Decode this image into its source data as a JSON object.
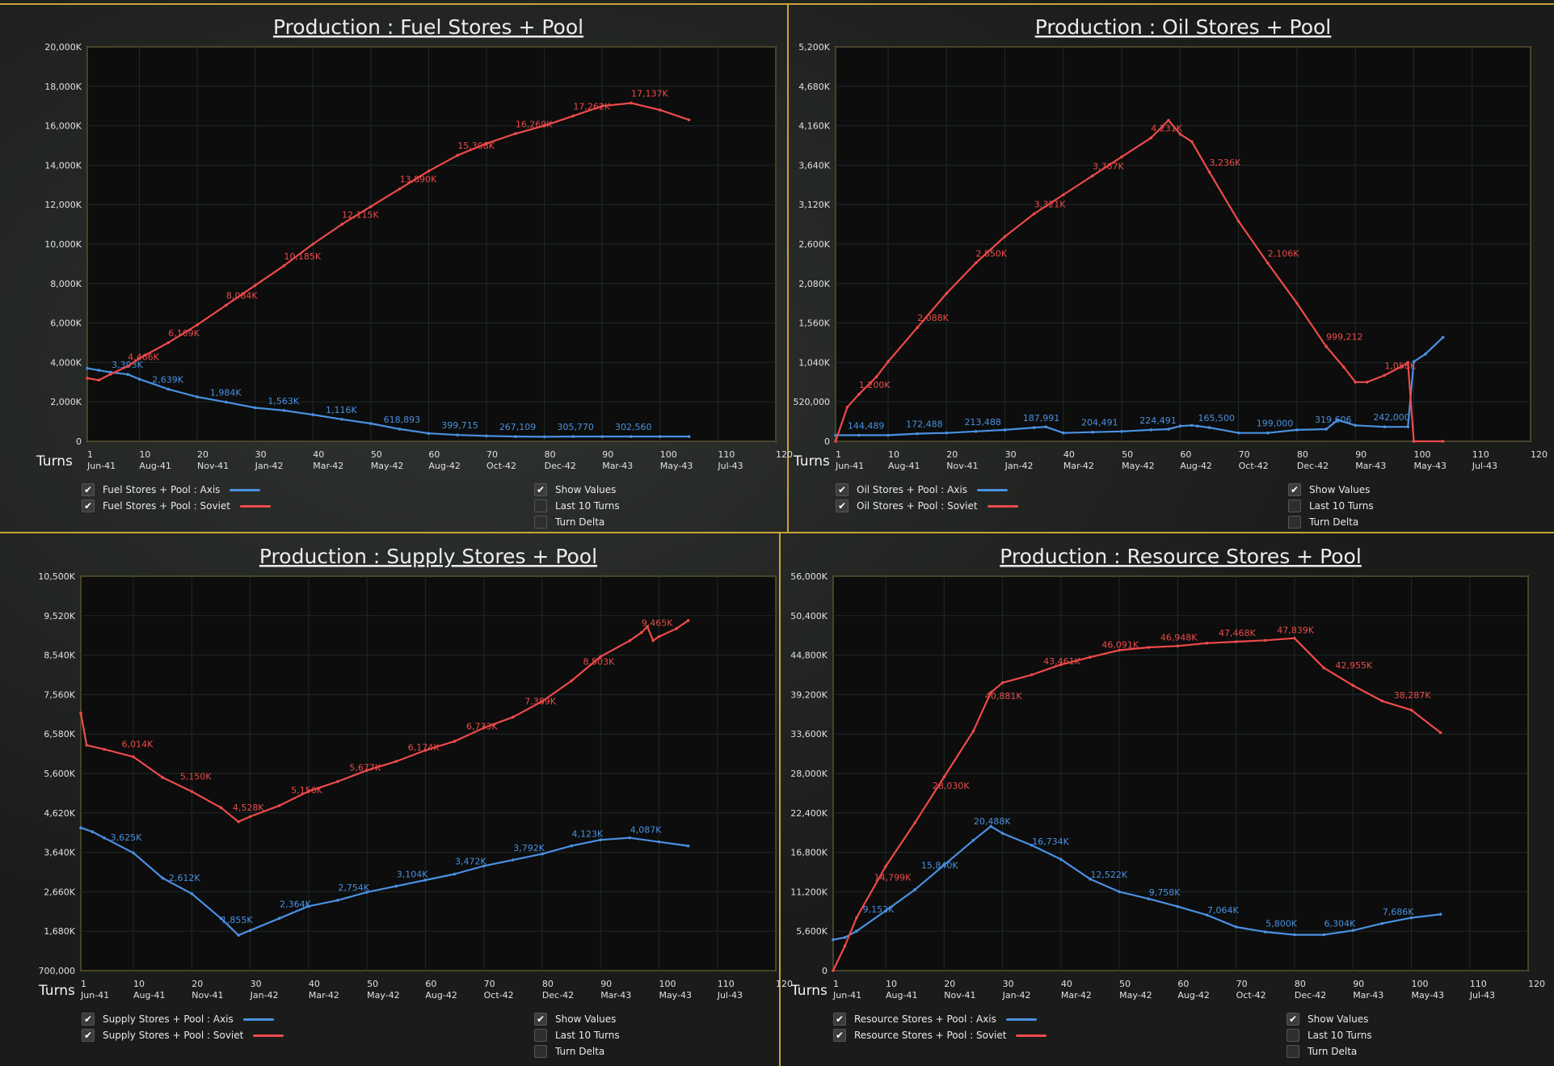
{
  "turns_label": "Turns",
  "colors": {
    "axis": "#4a90e2",
    "soviet": "#ee4a4a",
    "frame": "#c9a23a"
  },
  "options": [
    {
      "label": "Show Values",
      "checked": true
    },
    {
      "label": "Last 10 Turns",
      "checked": false
    },
    {
      "label": "Turn Delta",
      "checked": false
    }
  ],
  "x_ticks": [
    {
      "turn": 1,
      "date": "Jun-41"
    },
    {
      "turn": 10,
      "date": "Aug-41"
    },
    {
      "turn": 20,
      "date": "Nov-41"
    },
    {
      "turn": 30,
      "date": "Jan-42"
    },
    {
      "turn": 40,
      "date": "Mar-42"
    },
    {
      "turn": 50,
      "date": "May-42"
    },
    {
      "turn": 60,
      "date": "Aug-42"
    },
    {
      "turn": 70,
      "date": "Oct-42"
    },
    {
      "turn": 80,
      "date": "Dec-42"
    },
    {
      "turn": 90,
      "date": "Mar-43"
    },
    {
      "turn": 100,
      "date": "May-43"
    },
    {
      "turn": 110,
      "date": "Jul-43"
    },
    {
      "turn": 120,
      "date": ""
    }
  ],
  "chart_data": [
    {
      "type": "line",
      "title": "Production : Fuel Stores + Pool",
      "xlabel": "Turns",
      "xlim": [
        1,
        120
      ],
      "ylim": [
        0,
        20000
      ],
      "y_ticks": [
        "0",
        "2,000K",
        "4,000K",
        "6,000K",
        "8,000K",
        "10,000K",
        "12,000K",
        "14,000K",
        "16,000K",
        "18,000K",
        "20,000K"
      ],
      "series": [
        {
          "name": "Fuel Stores + Pool : Axis",
          "color": "axis",
          "x": [
            1,
            3,
            5,
            8,
            10,
            15,
            20,
            25,
            30,
            35,
            40,
            45,
            50,
            55,
            60,
            65,
            70,
            75,
            80,
            85,
            90,
            95,
            100,
            105
          ],
          "y": [
            3700,
            3600,
            3500,
            3393,
            3150,
            2639,
            2250,
            1984,
            1700,
            1563,
            1350,
            1116,
            900,
            619,
            400,
            320,
            270,
            240,
            230,
            240,
            240,
            240,
            240,
            240
          ],
          "labels": [
            [
              8,
              "3,393K"
            ],
            [
              15,
              "2,639K"
            ],
            [
              25,
              "1,984K"
            ],
            [
              35,
              "1,563K"
            ],
            [
              45,
              "1,116K"
            ],
            [
              55,
              "618,893"
            ],
            [
              65,
              "399,715"
            ],
            [
              75,
              "267,109"
            ],
            [
              85,
              "305,770"
            ],
            [
              95,
              "302,560"
            ]
          ]
        },
        {
          "name": "Fuel Stores + Pool : Soviet",
          "color": "soviet",
          "x": [
            1,
            3,
            5,
            8,
            10,
            15,
            20,
            25,
            30,
            35,
            40,
            45,
            50,
            55,
            60,
            65,
            70,
            75,
            80,
            85,
            90,
            95,
            100,
            105
          ],
          "y": [
            3200,
            3100,
            3400,
            3800,
            4200,
            5000,
            5900,
            6900,
            7900,
            8900,
            10000,
            11000,
            11900,
            12800,
            13700,
            14500,
            15100,
            15600,
            16000,
            16500,
            17000,
            17150,
            16800,
            16300
          ],
          "labels": [
            [
              8,
              "4,466K"
            ],
            [
              15,
              "6,109K"
            ],
            [
              25,
              "8,084K"
            ],
            [
              35,
              "10,185K"
            ],
            [
              45,
              "12,115K"
            ],
            [
              55,
              "13,890K"
            ],
            [
              65,
              "15,308K"
            ],
            [
              75,
              "16,269K"
            ],
            [
              85,
              "17,262K"
            ],
            [
              95,
              "17,137K"
            ]
          ]
        }
      ]
    },
    {
      "type": "line",
      "title": "Production : Oil Stores + Pool",
      "xlabel": "Turns",
      "xlim": [
        1,
        120
      ],
      "ylim": [
        0,
        5200
      ],
      "y_ticks": [
        "0",
        "520,000",
        "1,040K",
        "1,560K",
        "2,080K",
        "2,600K",
        "3,120K",
        "3,640K",
        "4,160K",
        "4,680K",
        "5,200K"
      ],
      "series": [
        {
          "name": "Oil Stores + Pool : Axis",
          "color": "axis",
          "x": [
            1,
            5,
            10,
            15,
            20,
            25,
            30,
            35,
            37,
            40,
            45,
            50,
            55,
            58,
            60,
            62,
            63,
            65,
            70,
            75,
            80,
            85,
            87,
            90,
            95,
            99,
            100,
            102,
            105
          ],
          "y": [
            80,
            80,
            80,
            100,
            110,
            130,
            150,
            180,
            190,
            110,
            120,
            130,
            150,
            160,
            200,
            210,
            200,
            180,
            110,
            110,
            150,
            160,
            280,
            210,
            190,
            190,
            1050,
            1150,
            1370
          ],
          "labels": [
            [
              5,
              "144,489"
            ],
            [
              15,
              "172,488"
            ],
            [
              25,
              "213,488"
            ],
            [
              35,
              "187,991"
            ],
            [
              45,
              "204,491"
            ],
            [
              55,
              "224,491"
            ],
            [
              65,
              "165,500"
            ],
            [
              75,
              "199,000"
            ],
            [
              85,
              "319,606"
            ],
            [
              95,
              "242,000"
            ]
          ]
        },
        {
          "name": "Oil Stores + Pool : Soviet",
          "color": "soviet",
          "x": [
            1,
            3,
            5,
            8,
            10,
            15,
            20,
            25,
            30,
            35,
            40,
            45,
            50,
            55,
            58,
            60,
            62,
            65,
            70,
            75,
            80,
            85,
            88,
            90,
            92,
            95,
            98,
            99,
            100,
            105
          ],
          "y": [
            0,
            450,
            620,
            850,
            1050,
            1500,
            1950,
            2350,
            2700,
            3000,
            3250,
            3500,
            3750,
            4000,
            4231,
            4050,
            3950,
            3550,
            2900,
            2350,
            1820,
            1250,
            980,
            780,
            780,
            870,
            990,
            1040,
            0,
            0
          ],
          "labels": [
            [
              5,
              "1,200K"
            ],
            [
              15,
              "2,088K"
            ],
            [
              25,
              "2,850K"
            ],
            [
              35,
              "3,321K"
            ],
            [
              45,
              "3,767K"
            ],
            [
              55,
              "4,231K"
            ],
            [
              65,
              "3,236K"
            ],
            [
              75,
              "2,106K"
            ],
            [
              85,
              "999,212"
            ],
            [
              95,
              "1,058K"
            ]
          ]
        }
      ]
    },
    {
      "type": "line",
      "title": "Production : Supply Stores + Pool",
      "xlabel": "Turns",
      "xlim": [
        1,
        120
      ],
      "ylim": [
        700,
        10500
      ],
      "y_ticks": [
        "700,000",
        "1,680K",
        "2,660K",
        "3,640K",
        "4,620K",
        "5,600K",
        "6,580K",
        "7,560K",
        "8,540K",
        "9,520K",
        "10,500K"
      ],
      "series": [
        {
          "name": "Supply Stores + Pool : Axis",
          "color": "axis",
          "x": [
            1,
            3,
            5,
            10,
            15,
            20,
            25,
            28,
            30,
            35,
            40,
            45,
            50,
            55,
            60,
            65,
            70,
            75,
            80,
            85,
            90,
            95,
            100,
            105
          ],
          "y": [
            4250,
            4150,
            4000,
            3625,
            3000,
            2612,
            2000,
            1580,
            1700,
            2000,
            2300,
            2450,
            2650,
            2800,
            2950,
            3100,
            3300,
            3450,
            3600,
            3800,
            3950,
            4000,
            3900,
            3800
          ],
          "labels": [
            [
              8,
              "3,625K"
            ],
            [
              18,
              "2,612K"
            ],
            [
              27,
              "1,855K"
            ],
            [
              37,
              "2,364K"
            ],
            [
              47,
              "2,754K"
            ],
            [
              57,
              "3,104K"
            ],
            [
              67,
              "3,472K"
            ],
            [
              77,
              "3,792K"
            ],
            [
              87,
              "4,123K"
            ],
            [
              97,
              "4,087K"
            ]
          ]
        },
        {
          "name": "Supply Stores + Pool : Soviet",
          "color": "soviet",
          "x": [
            1,
            2,
            5,
            10,
            15,
            20,
            25,
            28,
            30,
            35,
            40,
            45,
            50,
            55,
            60,
            65,
            70,
            75,
            80,
            85,
            90,
            95,
            97,
            98,
            99,
            100,
            103,
            105
          ],
          "y": [
            7100,
            6300,
            6200,
            6014,
            5500,
            5150,
            4750,
            4400,
            4528,
            4800,
            5156,
            5400,
            5677,
            5900,
            6174,
            6400,
            6733,
            7000,
            7389,
            7900,
            8503,
            8900,
            9100,
            9250,
            8900,
            9000,
            9200,
            9400
          ],
          "labels": [
            [
              8,
              "6,014K"
            ],
            [
              18,
              "5,150K"
            ],
            [
              27,
              "4,528K"
            ],
            [
              37,
              "5,156K"
            ],
            [
              47,
              "5,677K"
            ],
            [
              57,
              "6,174K"
            ],
            [
              67,
              "6,733K"
            ],
            [
              77,
              "7,389K"
            ],
            [
              87,
              "8,503K"
            ],
            [
              97,
              "9,465K"
            ]
          ]
        }
      ]
    },
    {
      "type": "line",
      "title": "Production : Resource Stores + Pool",
      "xlabel": "Turns",
      "xlim": [
        1,
        120
      ],
      "ylim": [
        0,
        56000
      ],
      "y_ticks": [
        "0",
        "5,600K",
        "11,200K",
        "16,800K",
        "22,400K",
        "28,000K",
        "33,600K",
        "39,200K",
        "44,800K",
        "50,400K",
        "56,000K"
      ],
      "series": [
        {
          "name": "Resource Stores + Pool : Axis",
          "color": "axis",
          "x": [
            1,
            3,
            5,
            10,
            15,
            20,
            25,
            28,
            30,
            35,
            40,
            45,
            50,
            55,
            60,
            65,
            70,
            75,
            80,
            85,
            90,
            95,
            100,
            105
          ],
          "y": [
            4400,
            4700,
            5600,
            8500,
            11500,
            15000,
            18500,
            20488,
            19500,
            17800,
            15800,
            13000,
            11200,
            10200,
            9100,
            7900,
            6200,
            5500,
            5100,
            5100,
            5700,
            6700,
            7500,
            8000
          ],
          "labels": [
            [
              8,
              "9,152K"
            ],
            [
              18,
              "15,840K"
            ],
            [
              27,
              "20,488K"
            ],
            [
              37,
              "16,734K"
            ],
            [
              47,
              "12,522K"
            ],
            [
              57,
              "9,758K"
            ],
            [
              67,
              "7,064K"
            ],
            [
              77,
              "5,800K"
            ],
            [
              87,
              "6,304K"
            ],
            [
              97,
              "7,686K"
            ]
          ]
        },
        {
          "name": "Resource Stores + Pool : Soviet",
          "color": "soviet",
          "x": [
            1,
            3,
            5,
            10,
            15,
            20,
            25,
            28,
            30,
            35,
            40,
            45,
            50,
            55,
            60,
            65,
            70,
            75,
            80,
            85,
            90,
            95,
            100,
            105
          ],
          "y": [
            0,
            3500,
            7500,
            14799,
            21000,
            27500,
            34000,
            39500,
            40881,
            42000,
            43461,
            44500,
            45500,
            45900,
            46091,
            46500,
            46700,
            46900,
            47200,
            43000,
            40500,
            38287,
            37000,
            33800
          ],
          "labels": [
            [
              8,
              "14,799K"
            ],
            [
              18,
              "28,030K"
            ],
            [
              27,
              "40,881K"
            ],
            [
              37,
              "43,461K"
            ],
            [
              47,
              "46,091K"
            ],
            [
              57,
              "46,948K"
            ],
            [
              67,
              "47,468K"
            ],
            [
              77,
              "47,839K"
            ],
            [
              87,
              "42,955K"
            ],
            [
              97,
              "38,287K"
            ]
          ]
        }
      ]
    }
  ]
}
